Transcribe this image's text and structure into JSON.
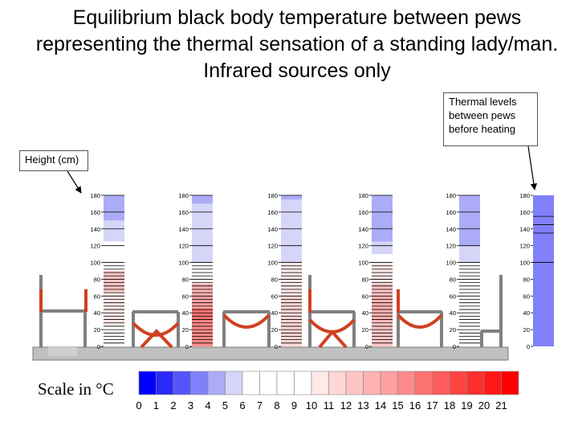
{
  "title": "Equilibrium black body temperature between pews representing the thermal sensation of a standing lady/man. Infrared sources only",
  "callouts": {
    "height": "Height (cm)",
    "thermal": [
      "Thermal levels",
      "between pews",
      "before heating"
    ]
  },
  "axis": {
    "ticks": [
      0,
      20,
      40,
      60,
      80,
      100,
      120,
      140,
      160,
      180
    ],
    "unit": "cm"
  },
  "scale": {
    "label": "Scale in °C",
    "ticks": [
      "0",
      "1",
      "2",
      "3",
      "4",
      "5",
      "6",
      "7",
      "8",
      "9",
      "10",
      "11",
      "12",
      "13",
      "14",
      "15",
      "16",
      "17",
      "18",
      "19",
      "20",
      "21"
    ],
    "colors": [
      "#0000ff",
      "#2a2afc",
      "#5555fb",
      "#8080fa",
      "#ababf8",
      "#d5d5f8",
      "#ffffff",
      "#ffffff",
      "#ffffff",
      "#ffffff",
      "#ffe8e8",
      "#ffd6d6",
      "#ffc4c4",
      "#ffb2b2",
      "#ffa0a0",
      "#ff8a8a",
      "#ff7272",
      "#ff5c5c",
      "#ff4444",
      "#ff2e2e",
      "#ff1717",
      "#ff0000"
    ]
  },
  "columns": [
    {
      "name": "column-1",
      "has_lines": true,
      "segments": [
        {
          "from": 0,
          "to": 25,
          "c": 7
        },
        {
          "from": 25,
          "to": 65,
          "c": 10
        },
        {
          "from": 65,
          "to": 90,
          "c": 12
        },
        {
          "from": 90,
          "to": 125,
          "c": 7
        },
        {
          "from": 125,
          "to": 150,
          "c": 5
        },
        {
          "from": 150,
          "to": 180,
          "c": 4
        }
      ]
    },
    {
      "name": "column-2",
      "has_lines": true,
      "segments": [
        {
          "from": 0,
          "to": 30,
          "c": 15
        },
        {
          "from": 30,
          "to": 45,
          "c": 16
        },
        {
          "from": 45,
          "to": 60,
          "c": 14
        },
        {
          "from": 60,
          "to": 75,
          "c": 13
        },
        {
          "from": 75,
          "to": 100,
          "c": 7
        },
        {
          "from": 100,
          "to": 170,
          "c": 5
        },
        {
          "from": 170,
          "to": 180,
          "c": 4
        }
      ]
    },
    {
      "name": "column-3",
      "has_lines": true,
      "segments": [
        {
          "from": 0,
          "to": 60,
          "c": 11
        },
        {
          "from": 60,
          "to": 100,
          "c": 10
        },
        {
          "from": 100,
          "to": 180,
          "c": 5
        },
        {
          "from": 175,
          "to": 180,
          "c": 4
        }
      ]
    },
    {
      "name": "column-4",
      "has_lines": true,
      "segments": [
        {
          "from": 0,
          "to": 30,
          "c": 12
        },
        {
          "from": 30,
          "to": 60,
          "c": 13
        },
        {
          "from": 60,
          "to": 75,
          "c": 12
        },
        {
          "from": 75,
          "to": 100,
          "c": 10
        },
        {
          "from": 100,
          "to": 110,
          "c": 6
        },
        {
          "from": 110,
          "to": 125,
          "c": 5
        },
        {
          "from": 125,
          "to": 180,
          "c": 4
        }
      ]
    },
    {
      "name": "column-5",
      "has_lines": true,
      "segments": [
        {
          "from": 0,
          "to": 25,
          "c": 7
        },
        {
          "from": 25,
          "to": 100,
          "c": 6
        },
        {
          "from": 100,
          "to": 120,
          "c": 5
        },
        {
          "from": 120,
          "to": 180,
          "c": 4
        }
      ]
    },
    {
      "name": "column-6",
      "has_lines": false,
      "segments": [
        {
          "from": 0,
          "to": 180,
          "c": 3
        }
      ]
    }
  ]
}
